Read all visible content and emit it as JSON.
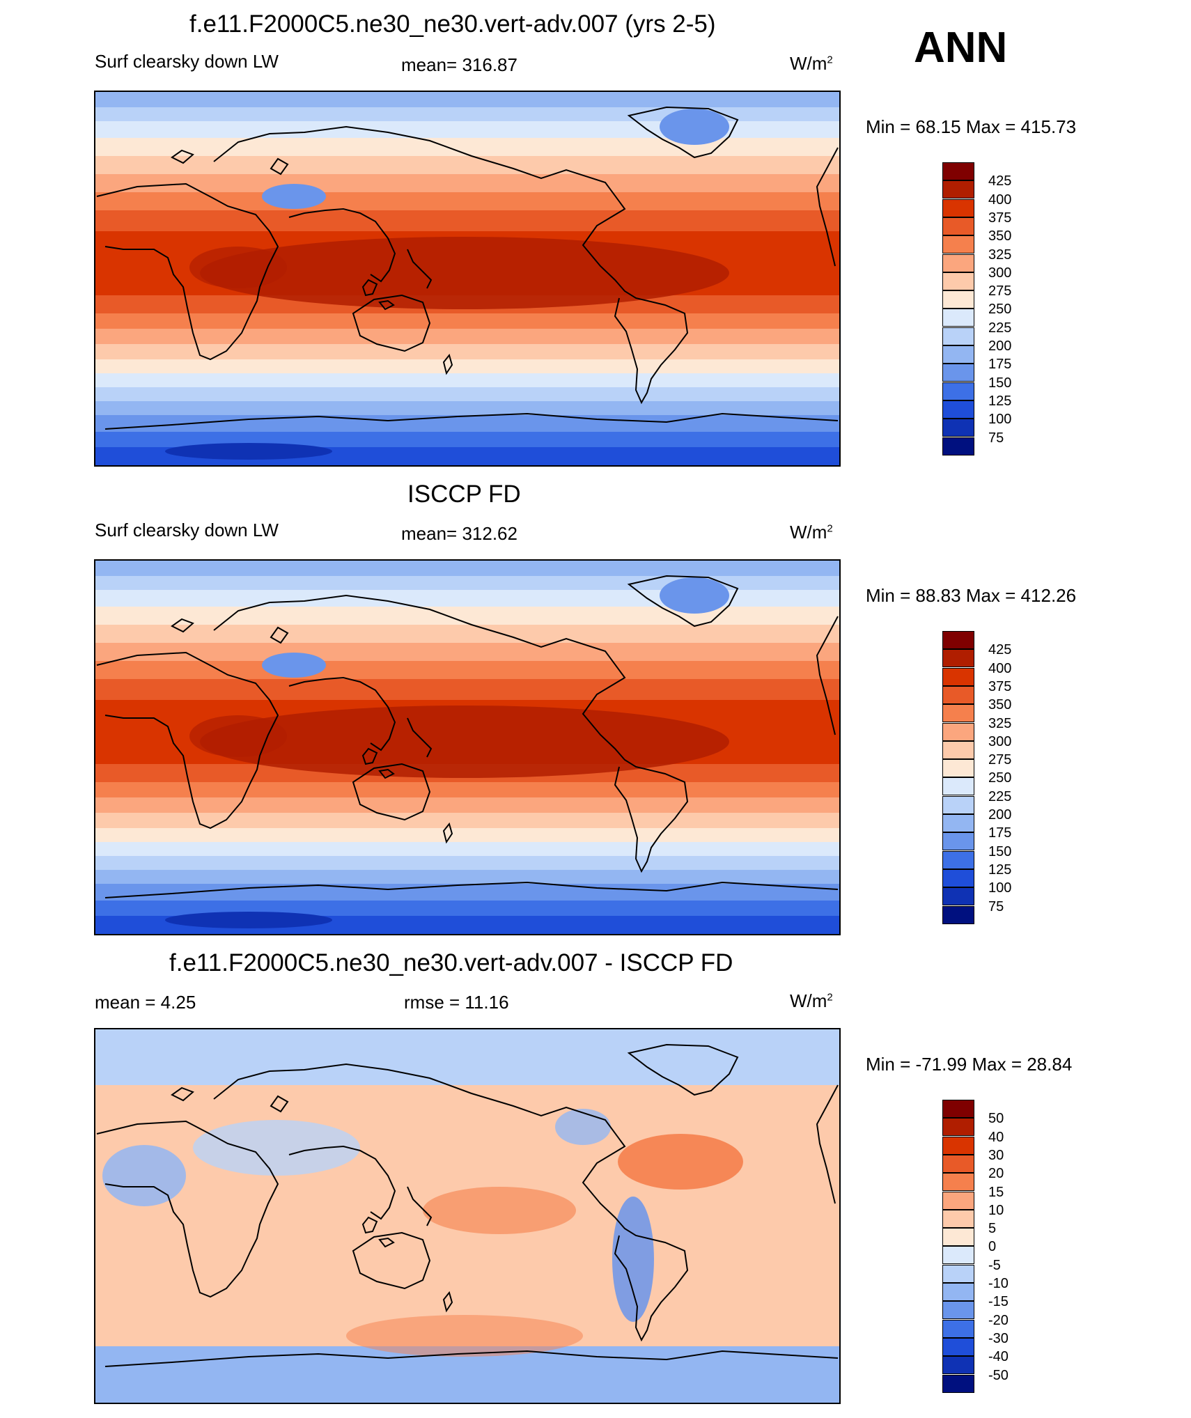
{
  "season": "ANN",
  "units_base": "W/m",
  "units_exp": "2",
  "panels": [
    {
      "title": "f.e11.F2000C5.ne30_ne30.vert-adv.007 (yrs 2-5)",
      "left_label": "Surf clearsky down LW",
      "center_label": "mean= 316.87",
      "minmax": "Min =  68.15 Max = 415.73",
      "map_kind": "absolute",
      "colorbar_ticks": [
        "425",
        "400",
        "375",
        "350",
        "325",
        "300",
        "275",
        "250",
        "225",
        "200",
        "175",
        "150",
        "125",
        "100",
        "75"
      ]
    },
    {
      "title": "ISCCP FD",
      "left_label": "Surf clearsky down LW",
      "center_label": "mean= 312.62",
      "minmax": "Min =  88.83 Max = 412.26",
      "map_kind": "absolute",
      "colorbar_ticks": [
        "425",
        "400",
        "375",
        "350",
        "325",
        "300",
        "275",
        "250",
        "225",
        "200",
        "175",
        "150",
        "125",
        "100",
        "75"
      ]
    },
    {
      "title": "f.e11.F2000C5.ne30_ne30.vert-adv.007 - ISCCP FD",
      "left_label": "mean =   4.25",
      "center_label": "rmse =  11.16",
      "minmax": "Min = -71.99 Max =  28.84",
      "map_kind": "difference",
      "colorbar_ticks": [
        "50",
        "40",
        "30",
        "20",
        "15",
        "10",
        "5",
        "0",
        "-5",
        "-10",
        "-15",
        "-20",
        "-30",
        "-40",
        "-50"
      ]
    }
  ],
  "colors": {
    "abs_scale": [
      "#7f0000",
      "#b01e00",
      "#d93400",
      "#e85a28",
      "#f5804d",
      "#fba67e",
      "#fdcaab",
      "#fde8d5",
      "#dbe9fb",
      "#b9d2f8",
      "#93b6f2",
      "#6a95eb",
      "#3d70e6",
      "#1f4ed9",
      "#0f32b4",
      "#00107f"
    ],
    "diff_scale": [
      "#7f0000",
      "#b01e00",
      "#d93400",
      "#e85a28",
      "#f5804d",
      "#fba67e",
      "#fdcaab",
      "#fde8d5",
      "#dbe9fb",
      "#b9d2f8",
      "#93b6f2",
      "#6a95eb",
      "#3d70e6",
      "#1f4ed9",
      "#0f32b4",
      "#00107f"
    ]
  }
}
